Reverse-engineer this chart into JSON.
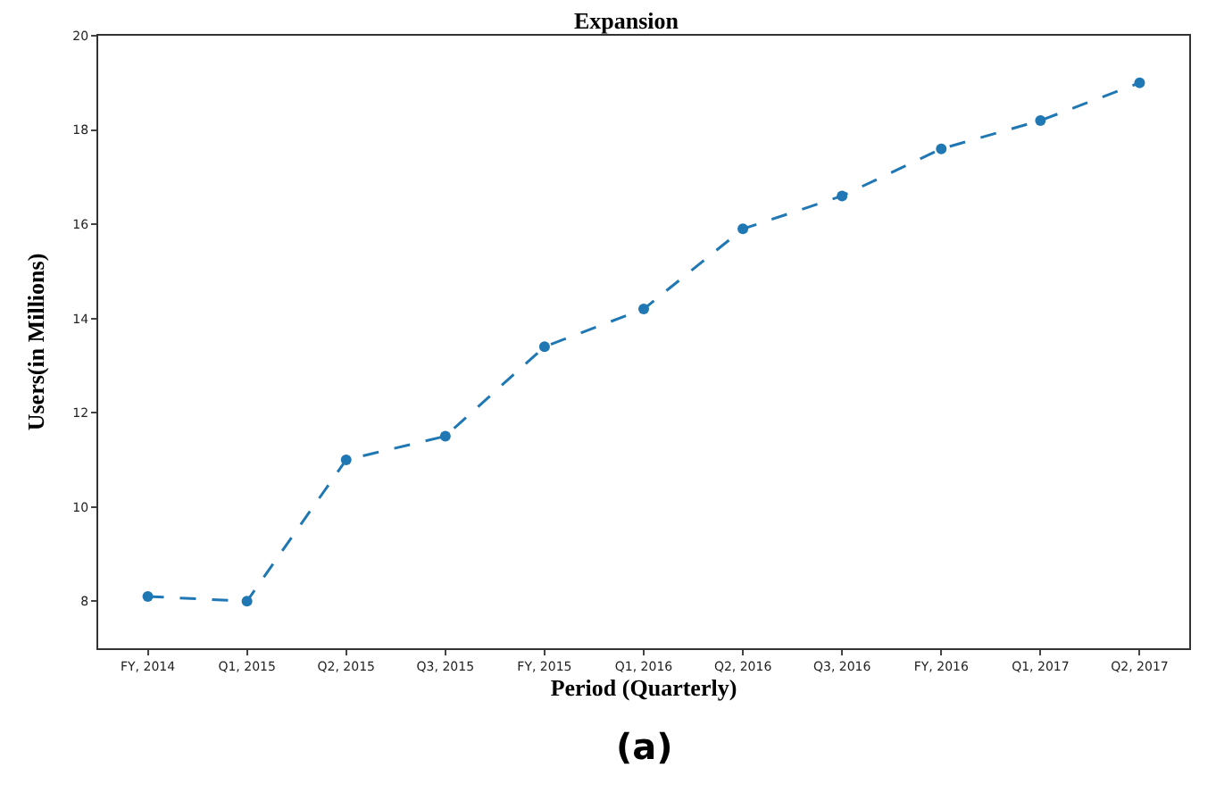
{
  "chart_data": {
    "type": "line",
    "title": "Expansion",
    "xlabel": "Period (Quarterly)",
    "ylabel": "Users(in Millions)",
    "categories": [
      "FY, 2014",
      "Q1, 2015",
      "Q2, 2015",
      "Q3, 2015",
      "FY, 2015",
      "Q1, 2016",
      "Q2, 2016",
      "Q3, 2016",
      "FY, 2016",
      "Q1, 2017",
      "Q2, 2017"
    ],
    "series": [
      {
        "color": "#1f77b4",
        "values": [
          8.1,
          8.0,
          11.0,
          11.5,
          13.4,
          14.2,
          15.9,
          16.6,
          17.6,
          18.2,
          19.0
        ]
      }
    ],
    "ylim": [
      7,
      20
    ],
    "yticks": [
      8,
      10,
      12,
      14,
      16,
      18,
      20
    ],
    "marker": "circle",
    "line_style": "dashed",
    "annotations": [
      "(a)"
    ]
  }
}
